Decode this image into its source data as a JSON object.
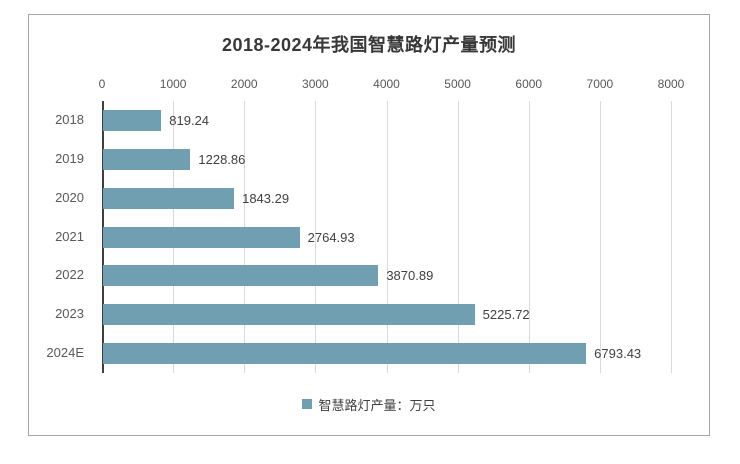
{
  "chart": {
    "title": "2018-2024年我国智慧路灯产量预测",
    "legend": {
      "label": "智慧路灯产量：万只"
    },
    "colors": {
      "bar": "#6f9fb1",
      "grid": "#d9d9d9",
      "axis_line": "#3f3f3f",
      "title_text": "#383838",
      "axis_text": "#595959",
      "value_text": "#404040",
      "frame_border": "#a6a6a6",
      "background": "#ffffff"
    }
  },
  "chart_data": {
    "type": "bar",
    "orientation": "horizontal",
    "title": "2018-2024年我国智慧路灯产量预测",
    "categories": [
      "2018",
      "2019",
      "2020",
      "2021",
      "2022",
      "2023",
      "2024E"
    ],
    "series": [
      {
        "name": "智慧路灯产量：万只",
        "values": [
          819.24,
          1228.86,
          1843.29,
          2764.93,
          3870.89,
          5225.72,
          6793.43
        ]
      }
    ],
    "value_unit": "万只",
    "xlim": [
      0,
      8000
    ],
    "x_ticks": [
      0,
      1000,
      2000,
      3000,
      4000,
      5000,
      6000,
      7000,
      8000
    ],
    "grid": true,
    "data_labels": true,
    "data_label_format": "2-decimals",
    "legend_position": "bottom"
  }
}
